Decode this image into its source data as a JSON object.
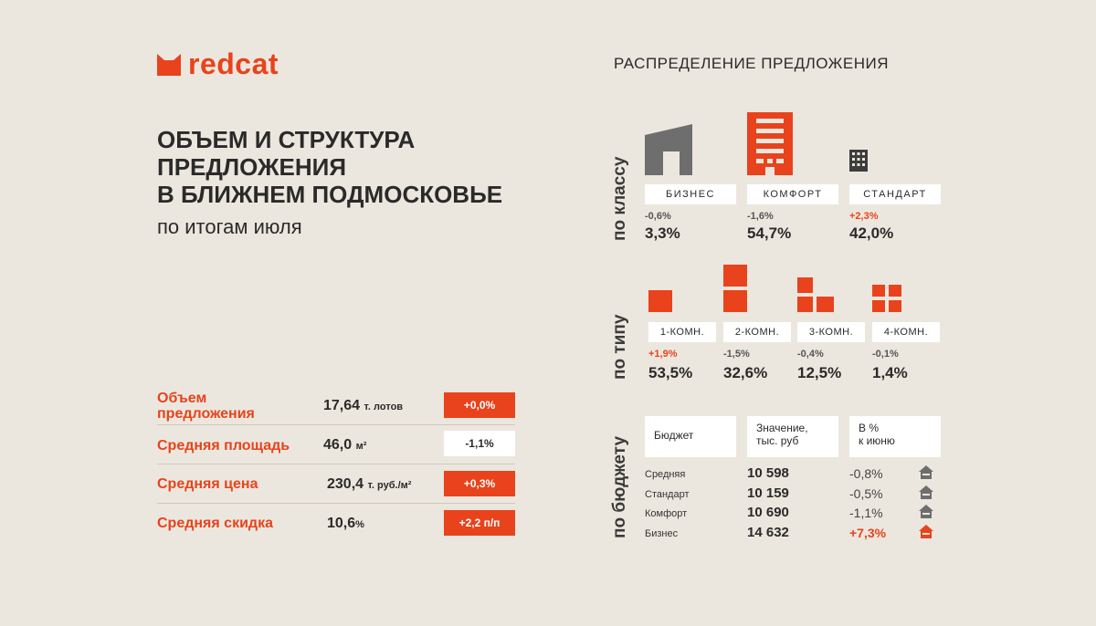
{
  "brand": {
    "name": "redcat",
    "accent": "#e8431c"
  },
  "headline": {
    "line1": "ОБЪЕМ И СТРУКТУРА",
    "line2": "ПРЕДЛОЖЕНИЯ",
    "line3": "В БЛИЖНЕМ ПОДМОСКОВЬЕ",
    "subtitle": "по итогам июля"
  },
  "metrics": [
    {
      "label_line1": "Объем",
      "label_line2": "предложения",
      "value": "17,64",
      "unit": "т. лотов",
      "change": "+0,0%",
      "style": "red"
    },
    {
      "label": "Средняя площадь",
      "value": "46,0",
      "unit": "м²",
      "change": "-1,1%",
      "style": "white"
    },
    {
      "label": "Средняя цена",
      "value": "230,4",
      "unit": "т. руб./м²",
      "change": "+0,3%",
      "style": "red"
    },
    {
      "label": "Средняя скидка",
      "value": "10,6",
      "unit": "%",
      "change": "+2,2 п/п",
      "style": "red"
    }
  ],
  "distribution": {
    "title": "РАСПРЕДЕЛЕНИЕ ПРЕДЛОЖЕНИЯ",
    "by_class": {
      "label": "по классу",
      "items": [
        {
          "name": "БИЗНЕС",
          "change": "-0,6%",
          "value": "3,3%",
          "positive": false
        },
        {
          "name": "КОМФОРТ",
          "change": "-1,6%",
          "value": "54,7%",
          "positive": false
        },
        {
          "name": "СТАНДАРТ",
          "change": "+2,3%",
          "value": "42,0%",
          "positive": true
        }
      ]
    },
    "by_type": {
      "label": "по типу",
      "items": [
        {
          "name": "1-КОМН.",
          "change": "+1,9%",
          "value": "53,5%",
          "positive": true
        },
        {
          "name": "2-КОМН.",
          "change": "-1,5%",
          "value": "32,6%",
          "positive": false
        },
        {
          "name": "3-КОМН.",
          "change": "-0,4%",
          "value": "12,5%",
          "positive": false
        },
        {
          "name": "4-КОМН.",
          "change": "-0,1%",
          "value": "1,4%",
          "positive": false
        }
      ]
    },
    "by_budget": {
      "label": "по бюджету",
      "headers": {
        "col1": "Бюджет",
        "col2_line1": "Значение,",
        "col2_line2": "тыс. руб",
        "col3_line1": "В %",
        "col3_line2": "к июню"
      },
      "rows": [
        {
          "name": "Средняя",
          "value": "10 598",
          "change": "-0,8%",
          "positive": false
        },
        {
          "name": "Стандарт",
          "value": "10 159",
          "change": "-0,5%",
          "positive": false
        },
        {
          "name": "Комфорт",
          "value": "10 690",
          "change": "-1,1%",
          "positive": false
        },
        {
          "name": "Бизнес",
          "value": "14 632",
          "change": "+7,3%",
          "positive": true
        }
      ]
    }
  }
}
